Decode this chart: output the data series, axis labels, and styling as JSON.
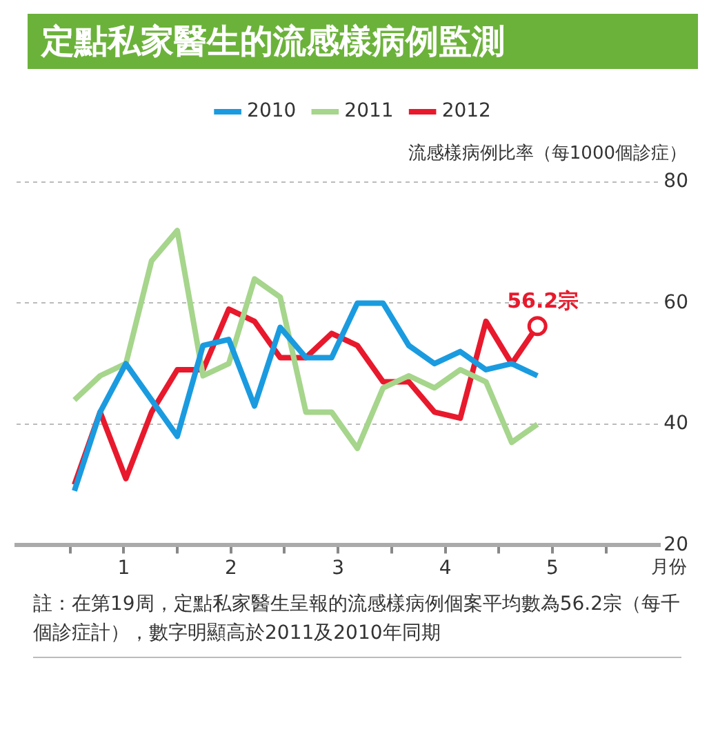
{
  "chart_data": {
    "type": "line",
    "title": "定點私家醫生的流感樣病例監測",
    "ylabel": "流感樣病例比率（每1000個診症）",
    "xlabel": "月份",
    "x": [
      1.04,
      1.28,
      1.52,
      1.76,
      2.0,
      2.24,
      2.48,
      2.72,
      2.96,
      3.2,
      3.44,
      3.68,
      3.92,
      4.16,
      4.4,
      4.64,
      4.88,
      5.12,
      5.36
    ],
    "series": [
      {
        "name": "2010",
        "color": "#1a9be0",
        "values": [
          29,
          42,
          50,
          44,
          38,
          53,
          54,
          43,
          56,
          51,
          51,
          60,
          60,
          53,
          50,
          52,
          49,
          50,
          48
        ]
      },
      {
        "name": "2011",
        "color": "#a6d58c",
        "values": [
          44,
          48,
          50,
          67,
          72,
          48,
          50,
          64,
          61,
          42,
          42,
          36,
          46,
          48,
          46,
          49,
          47,
          37,
          40
        ]
      },
      {
        "name": "2012",
        "color": "#e8192c",
        "values": [
          30,
          42,
          31,
          42,
          49,
          49,
          59,
          57,
          51,
          51,
          55,
          53,
          47,
          47,
          42,
          41,
          57,
          50,
          56.2
        ]
      }
    ],
    "xlim": [
      0.5,
      6.5
    ],
    "xticks": [
      {
        "value": 1,
        "label": null
      },
      {
        "value": 1.5,
        "label": "1"
      },
      {
        "value": 2,
        "label": null
      },
      {
        "value": 2.5,
        "label": "2"
      },
      {
        "value": 3,
        "label": null
      },
      {
        "value": 3.5,
        "label": "3"
      },
      {
        "value": 4,
        "label": null
      },
      {
        "value": 4.5,
        "label": "4"
      },
      {
        "value": 5,
        "label": null
      },
      {
        "value": 5.5,
        "label": "5"
      },
      {
        "value": 6,
        "label": null
      }
    ],
    "ylim": [
      20,
      80
    ],
    "yticks": [
      20,
      40,
      60,
      80
    ],
    "grid": "y",
    "legend": "top",
    "line_style": "solid",
    "annotations": [
      {
        "text": "56.2宗",
        "x": 5.36,
        "y": 56.2
      },
      "註：在第19周，定點私家醫生呈報的流感樣病例個案平均數為56.2宗（每千個診症計），數字明顯高於2011及2010年同期"
    ]
  }
}
